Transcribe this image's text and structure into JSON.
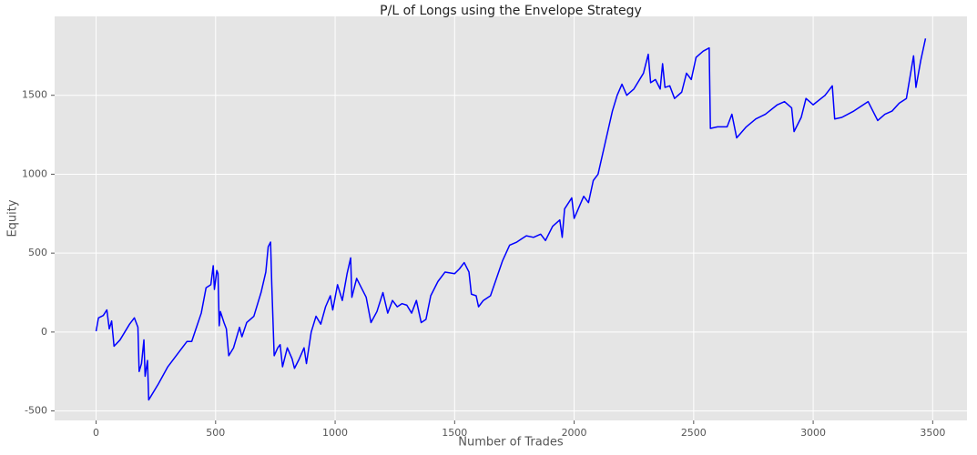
{
  "chart_data": {
    "type": "line",
    "title": "P/L of Longs using the Envelope Strategy",
    "x_label": "Number of Trades",
    "y_label": "Equity",
    "xlim": [
      -173.5,
      3643.5
    ],
    "ylim": [
      -560,
      2000
    ],
    "xticks": [
      0,
      500,
      1000,
      1500,
      2000,
      2500,
      3000,
      3500
    ],
    "yticks": [
      -500,
      0,
      500,
      1000,
      1500
    ],
    "grid": true,
    "x": [
      0,
      10,
      30,
      45,
      55,
      65,
      75,
      100,
      140,
      160,
      175,
      180,
      190,
      200,
      205,
      215,
      220,
      260,
      300,
      350,
      380,
      400,
      420,
      440,
      460,
      480,
      490,
      495,
      505,
      510,
      515,
      520,
      535,
      545,
      555,
      575,
      600,
      610,
      630,
      660,
      690,
      710,
      720,
      730,
      735,
      745,
      760,
      770,
      780,
      800,
      820,
      830,
      850,
      870,
      880,
      900,
      920,
      940,
      960,
      980,
      990,
      1010,
      1030,
      1050,
      1065,
      1070,
      1090,
      1110,
      1130,
      1150,
      1175,
      1200,
      1220,
      1240,
      1260,
      1280,
      1300,
      1320,
      1340,
      1360,
      1380,
      1400,
      1430,
      1460,
      1500,
      1520,
      1540,
      1560,
      1570,
      1590,
      1600,
      1620,
      1650,
      1700,
      1730,
      1760,
      1780,
      1800,
      1830,
      1860,
      1880,
      1910,
      1940,
      1950,
      1960,
      1990,
      2000,
      2040,
      2060,
      2080,
      2100,
      2130,
      2160,
      2180,
      2200,
      2220,
      2250,
      2290,
      2310,
      2320,
      2340,
      2360,
      2370,
      2380,
      2400,
      2420,
      2450,
      2470,
      2490,
      2510,
      2540,
      2565,
      2570,
      2600,
      2640,
      2660,
      2680,
      2720,
      2760,
      2800,
      2850,
      2880,
      2910,
      2920,
      2950,
      2970,
      3000,
      3050,
      3080,
      3090,
      3120,
      3170,
      3230,
      3270,
      3300,
      3330,
      3360,
      3390,
      3420,
      3430,
      3450,
      3470
    ],
    "series": [
      {
        "name": "Equity",
        "color": "#0000ff",
        "values": [
          5,
          90,
          105,
          140,
          20,
          70,
          -90,
          -50,
          50,
          90,
          30,
          -250,
          -200,
          -50,
          -280,
          -180,
          -430,
          -330,
          -220,
          -120,
          -60,
          -60,
          30,
          120,
          280,
          300,
          420,
          270,
          390,
          370,
          40,
          130,
          60,
          20,
          -150,
          -100,
          30,
          -30,
          60,
          100,
          250,
          380,
          540,
          570,
          300,
          -150,
          -100,
          -80,
          -220,
          -100,
          -170,
          -230,
          -170,
          -100,
          -200,
          0,
          100,
          50,
          160,
          230,
          140,
          300,
          200,
          370,
          470,
          220,
          340,
          280,
          220,
          60,
          130,
          250,
          120,
          200,
          160,
          180,
          170,
          120,
          200,
          60,
          80,
          230,
          320,
          380,
          370,
          400,
          440,
          380,
          240,
          230,
          160,
          200,
          230,
          450,
          550,
          570,
          590,
          610,
          600,
          620,
          580,
          670,
          710,
          600,
          780,
          850,
          720,
          860,
          820,
          960,
          1000,
          1200,
          1400,
          1500,
          1570,
          1500,
          1540,
          1640,
          1760,
          1580,
          1600,
          1540,
          1700,
          1550,
          1560,
          1480,
          1520,
          1640,
          1600,
          1740,
          1780,
          1800,
          1290,
          1300,
          1300,
          1380,
          1230,
          1300,
          1350,
          1380,
          1440,
          1460,
          1420,
          1270,
          1360,
          1480,
          1440,
          1500,
          1560,
          1350,
          1360,
          1400,
          1460,
          1340,
          1380,
          1400,
          1450,
          1480,
          1750,
          1550,
          1720,
          1860
        ]
      }
    ]
  }
}
